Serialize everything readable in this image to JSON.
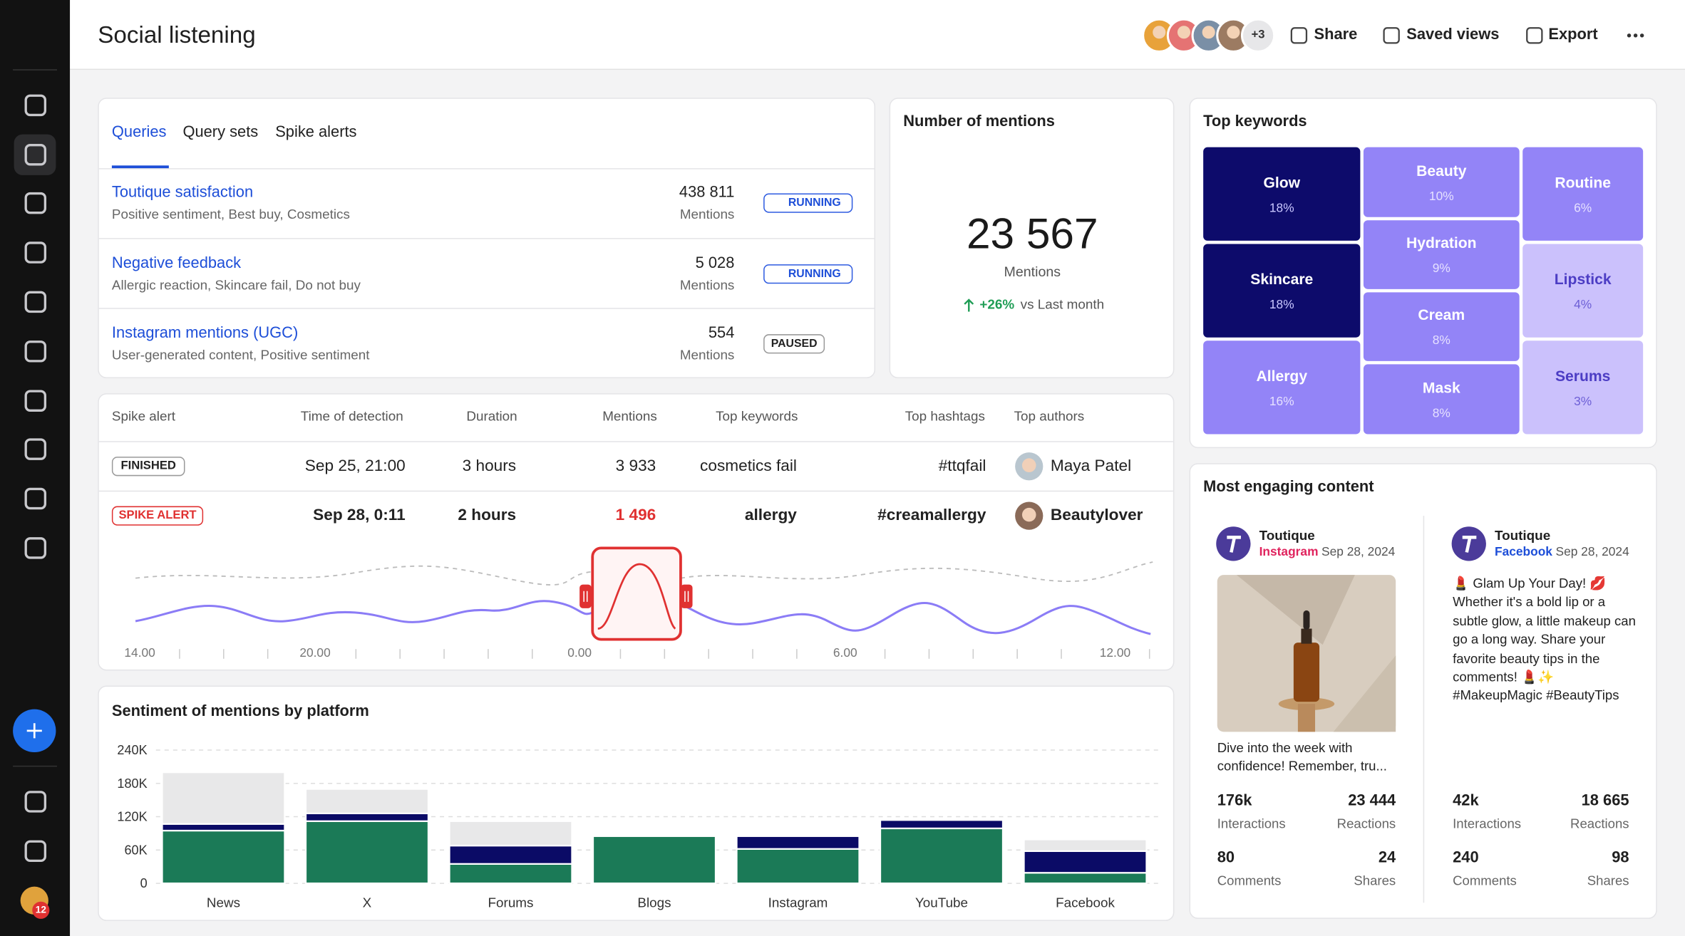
{
  "header": {
    "title": "Social listening",
    "avatars_more": "+3",
    "actions": [
      "Share",
      "Saved views",
      "Export"
    ]
  },
  "sidebar": {
    "notification_count": "12"
  },
  "queries": {
    "tabs": [
      "Queries",
      "Query sets",
      "Spike alerts"
    ],
    "rows": [
      {
        "name": "Toutique satisfaction",
        "tags": "Positive sentiment, Best buy, Cosmetics",
        "count": "438 811",
        "unit": "Mentions",
        "status": "RUNNING"
      },
      {
        "name": "Negative feedback",
        "tags": "Allergic reaction, Skincare fail, Do not buy",
        "count": "5 028",
        "unit": "Mentions",
        "status": "RUNNING"
      },
      {
        "name": "Instagram mentions (UGC)",
        "tags": "User-generated content, Positive sentiment",
        "count": "554",
        "unit": "Mentions",
        "status": "PAUSED"
      }
    ]
  },
  "mentions": {
    "title": "Number of mentions",
    "value": "23 567",
    "unit": "Mentions",
    "change": "+26%",
    "comparison": "vs Last month"
  },
  "keywords": {
    "title": "Top keywords",
    "items": [
      {
        "label": "Glow",
        "share": "18%"
      },
      {
        "label": "Beauty",
        "share": "10%"
      },
      {
        "label": "Routine",
        "share": "6%"
      },
      {
        "label": "Hydration",
        "share": "9%"
      },
      {
        "label": "Skincare",
        "share": "18%"
      },
      {
        "label": "Lipstick",
        "share": "4%"
      },
      {
        "label": "Cream",
        "share": "8%"
      },
      {
        "label": "Allergy",
        "share": "16%"
      },
      {
        "label": "Mask",
        "share": "8%"
      },
      {
        "label": "Serums",
        "share": "3%"
      }
    ]
  },
  "spikes": {
    "columns": [
      "Spike alert",
      "Time of detection",
      "Duration",
      "Mentions",
      "Top keywords",
      "Top hashtags",
      "Top authors"
    ],
    "rows": [
      [
        "FINISHED",
        "Sep 25, 21:00",
        "3 hours",
        "3 933",
        "cosmetics fail",
        "#ttqfail",
        "Maya Patel"
      ],
      [
        "SPIKE ALERT",
        "Sep 28, 0:11",
        "2 hours",
        "1 496",
        "allergy",
        "#creamallergy",
        "Beautylover"
      ]
    ],
    "timeline": [
      "14.00",
      "20.00",
      "0.00",
      "6.00",
      "12.00"
    ]
  },
  "engaging": {
    "title": "Most engaging content",
    "posts": [
      {
        "author": "Toutique",
        "platform": "Instagram",
        "date": "Sep 28, 2024",
        "text": "Dive into the week with confidence! Remember, tru...",
        "stats": [
          {
            "value": "176k",
            "label": "Interactions"
          },
          {
            "value": "23 444",
            "label": "Reactions"
          },
          {
            "value": "80",
            "label": "Comments"
          },
          {
            "value": "24",
            "label": "Shares"
          }
        ]
      },
      {
        "author": "Toutique",
        "platform": "Facebook",
        "date": "Sep 28, 2024",
        "text": "💄 Glam Up Your Day! 💋 Whether it's a bold lip or a subtle glow, a little makeup can go a long way. Share your favorite beauty tips in the comments! 💄✨ #MakeupMagic #BeautyTips",
        "stats": [
          {
            "value": "42k",
            "label": "Interactions"
          },
          {
            "value": "18 665",
            "label": "Reactions"
          },
          {
            "value": "240",
            "label": "Comments"
          },
          {
            "value": "98",
            "label": "Shares"
          }
        ]
      }
    ]
  },
  "chart_data": {
    "type": "bar",
    "stacked": true,
    "title": "Sentiment of mentions by platform",
    "categories": [
      "News",
      "X",
      "Forums",
      "Blogs",
      "Instagram",
      "YouTube",
      "Facebook"
    ],
    "series": [
      {
        "color": "#1b7a57",
        "values": [
          95000,
          112000,
          35000,
          85000,
          62000,
          99000,
          19000
        ]
      },
      {
        "color": "#0b0b66",
        "values": [
          12000,
          14000,
          33000,
          0,
          23000,
          15000,
          39000
        ]
      },
      {
        "color": "#e8e8e9",
        "values": [
          93000,
          44000,
          44000,
          0,
          0,
          0,
          21000
        ]
      }
    ],
    "ylim": [
      0,
      240000
    ],
    "yticks": [
      0,
      {
        "value": 60000,
        "label": "60K"
      },
      {
        "value": 120000,
        "label": "120K"
      },
      {
        "value": 180000,
        "label": "180K"
      },
      {
        "value": 240000,
        "label": "240K"
      }
    ],
    "grid": true
  }
}
